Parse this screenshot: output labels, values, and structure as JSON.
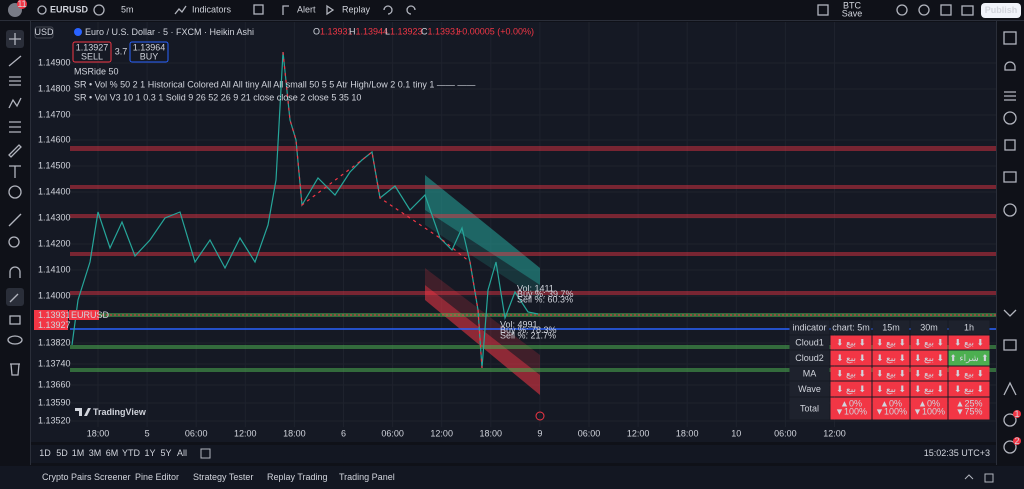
{
  "top_bar": {
    "badge": "11",
    "symbol": "EURUSD",
    "interval": "5m",
    "indicators": "Indicators",
    "alert": "Alert",
    "replay": "Replay",
    "watch": "BTC",
    "watch_sub": "Save",
    "publish": "Publish"
  },
  "legend": {
    "currency": "USD",
    "title": "Euro / U.S. Dollar · 5 · FXCM · Heikin Ashi",
    "ohlc": [
      {
        "k": "O",
        "v": "1.13931"
      },
      {
        "k": "H",
        "v": "1.13944"
      },
      {
        "k": "L",
        "v": "1.13923"
      },
      {
        "k": "C",
        "v": "1.13931"
      },
      {
        "k": "",
        "v": "+0.00005 (+0.00%)"
      }
    ],
    "sell_price": "1.13927",
    "sell": "SELL",
    "spread": "3.7",
    "buy_price": "1.13964",
    "buy": "BUY",
    "studies": [
      "MSRide 50",
      "SR • Vol % 50 2 1 Historical Colored All All tiny All All small 50 5 5 Atr High/Low 2 0.1 tiny 1 —— ——",
      "SR • Vol V3 10 1 0.3 1 Solid 9 26 52 26 9 21 close close 2 close 5 35 10"
    ]
  },
  "price_axis": {
    "labels": [
      "1.14900",
      "1.14800",
      "1.14700",
      "1.14600",
      "1.14500",
      "1.14400",
      "1.14300",
      "1.14200",
      "1.14100",
      "1.14000",
      "1.13820",
      "1.13740",
      "1.13660",
      "1.13590",
      "1.13520"
    ],
    "last_price": "1.13931",
    "bid_price": "1.13927",
    "symbol_tag": "EURUSD"
  },
  "time_axis": [
    "18:00",
    "5",
    "06:00",
    "12:00",
    "18:00",
    "6",
    "06:00",
    "12:00",
    "18:00",
    "9",
    "06:00",
    "12:00",
    "18:00",
    "10",
    "06:00",
    "12:00"
  ],
  "chart_labels": {
    "upper": [
      "Vol: 1411",
      "Buy %: 39.7%",
      "Sell %: 60.3%"
    ],
    "lower": [
      "Vol: 4991",
      "Buy %: 78.3%",
      "Sell %: 21.7%"
    ],
    "logo": "TradingView"
  },
  "signal_table": {
    "header": [
      "indicator",
      "chart: 5m",
      "15m",
      "30m",
      "1h"
    ],
    "rows": [
      {
        "label": "Cloud1",
        "cells": [
          {
            "text": "⬇ بيع ⬇",
            "color": "#f23645"
          },
          {
            "text": "⬇ بيع ⬇",
            "color": "#f23645"
          },
          {
            "text": "⬇ بيع ⬇",
            "color": "#f23645"
          },
          {
            "text": "⬇ بيع ⬇",
            "color": "#f23645"
          }
        ]
      },
      {
        "label": "Cloud2",
        "cells": [
          {
            "text": "⬇ بيع ⬇",
            "color": "#f23645"
          },
          {
            "text": "⬇ بيع ⬇",
            "color": "#f23645"
          },
          {
            "text": "⬇ بيع ⬇",
            "color": "#f23645"
          },
          {
            "text": "⬆ شراء ⬆",
            "color": "#4caf50"
          }
        ]
      },
      {
        "label": "MA",
        "cells": [
          {
            "text": "⬇ بيع ⬇",
            "color": "#f23645"
          },
          {
            "text": "⬇ بيع ⬇",
            "color": "#f23645"
          },
          {
            "text": "⬇ بيع ⬇",
            "color": "#f23645"
          },
          {
            "text": "⬇ بيع ⬇",
            "color": "#f23645"
          }
        ]
      },
      {
        "label": "Wave",
        "cells": [
          {
            "text": "⬇ بيع ⬇",
            "color": "#f23645"
          },
          {
            "text": "⬇ بيع ⬇",
            "color": "#f23645"
          },
          {
            "text": "⬇ بيع ⬇",
            "color": "#f23645"
          },
          {
            "text": "⬇ بيع ⬇",
            "color": "#f23645"
          }
        ]
      }
    ],
    "total": {
      "label": "Total",
      "cells": [
        [
          "▲0%",
          "▼100%"
        ],
        [
          "▲0%",
          "▼100%"
        ],
        [
          "▲0%",
          "▼100%"
        ],
        [
          "▲25%",
          "▼75%"
        ]
      ],
      "color": "#f23645"
    }
  },
  "range_bar": {
    "ranges": [
      "1D",
      "5D",
      "1M",
      "3M",
      "6M",
      "YTD",
      "1Y",
      "5Y",
      "All"
    ],
    "clock": "15:02:35 UTC+3"
  },
  "bottom_tabs": [
    "Crypto Pairs Screener",
    "Pine Editor",
    "Strategy Tester",
    "Replay Trading",
    "Trading Panel"
  ],
  "right_badges": [
    "1",
    "2"
  ]
}
